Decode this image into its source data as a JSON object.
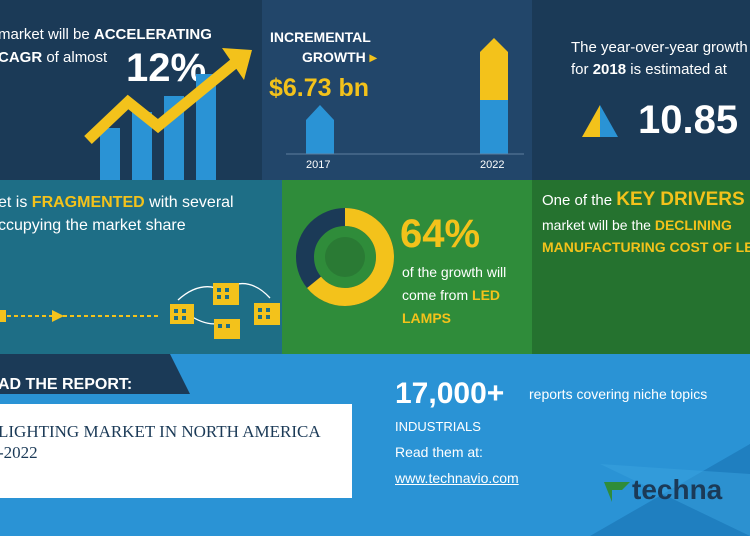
{
  "colors": {
    "dark_navy": "#1b3a57",
    "mid_navy": "#22466a",
    "teal": "#1e6e86",
    "green": "#2f8c3a",
    "dark_green": "#25722f",
    "light_blue": "#2a93d5",
    "yellow": "#f3c21b",
    "white": "#ffffff"
  },
  "panel1": {
    "line1_prefix": "market will be ",
    "line1_bold": "ACCELERATING",
    "line2_bold": "CAGR",
    "line2_suffix": " of almost",
    "cagr_value": "12%"
  },
  "panel2": {
    "title_line1": "INCREMENTAL",
    "title_line2": "GROWTH",
    "growth_value": "$6.73 bn",
    "year_start": "2017",
    "year_end": "2022"
  },
  "panel3": {
    "line1": "The year-over-year growth",
    "line2_prefix": "for ",
    "line2_bold": "2018",
    "line2_suffix": " is estimated at",
    "yoy_value": "10.85"
  },
  "panel4": {
    "line1_prefix": "et is ",
    "line1_bold": "FRAGMENTED",
    "line1_suffix": " with several",
    "line2": "ccupying the market share"
  },
  "panel5": {
    "percent": "64%",
    "line1": "of the growth will",
    "line2_prefix": "come from ",
    "line2_bold": "LED",
    "line3_bold": "LAMPS",
    "donut_fraction": 0.64
  },
  "panel6": {
    "line1_prefix": "One of the ",
    "line1_bold": "KEY DRIVERS",
    "line2_prefix": "market will be the ",
    "line2_bold": "DECLINING",
    "line3_bold": "MANUFACTURING COST OF LE"
  },
  "bottom": {
    "read_report": "AD THE REPORT:",
    "report_title_line1": "LIGHTING MARKET IN NORTH AMERICA",
    "report_title_line2": "-2022",
    "reports_count": "17,000+",
    "reports_desc": "reports covering niche topics",
    "industrials": "INDUSTRIALS",
    "read_them": "Read them at:",
    "url": "www.technavio.com",
    "logo_text": "techna"
  }
}
